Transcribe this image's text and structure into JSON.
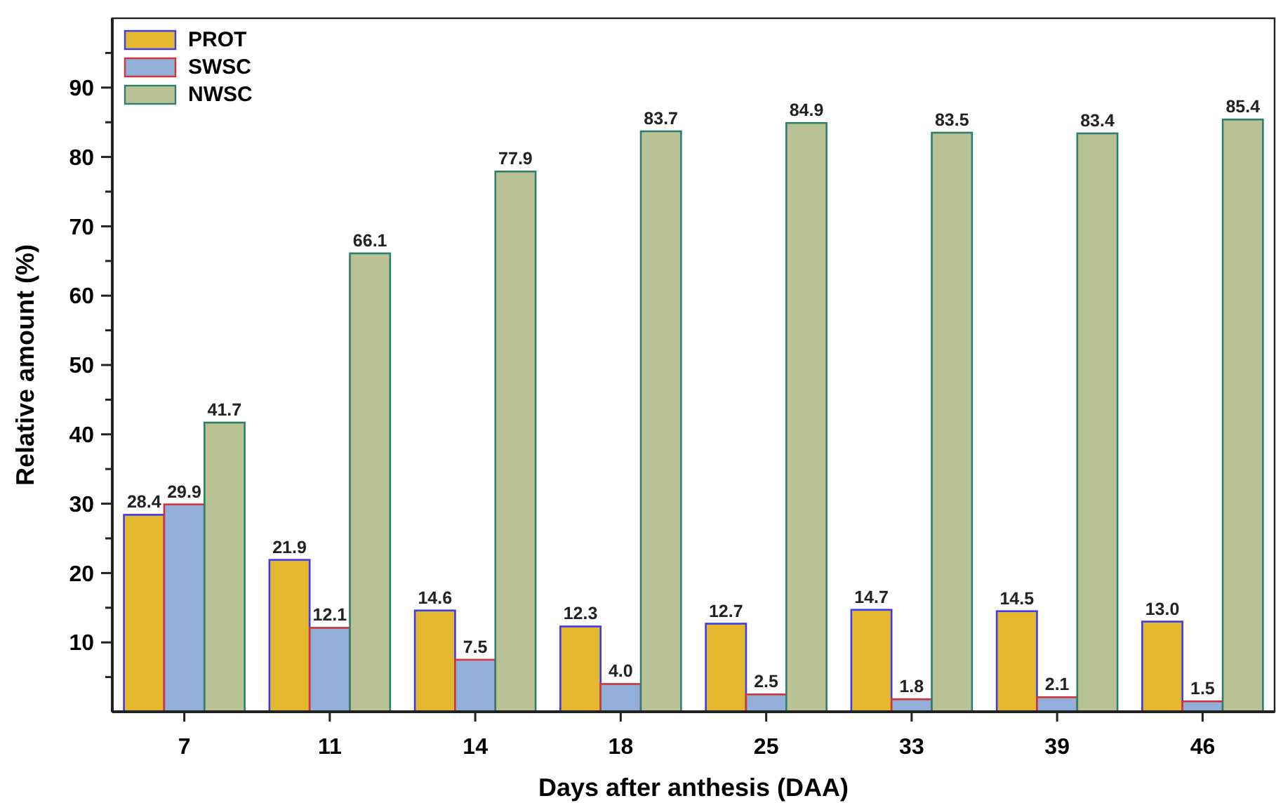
{
  "chart_data": {
    "type": "bar",
    "xlabel": "Days after anthesis (DAA)",
    "ylabel": "Relative amount (%)",
    "categories": [
      "7",
      "11",
      "14",
      "18",
      "25",
      "33",
      "39",
      "46"
    ],
    "series": [
      {
        "name": "PROT",
        "color": "#e4b82e",
        "values": [
          28.4,
          21.9,
          14.6,
          12.3,
          12.7,
          14.7,
          14.5,
          13.0
        ],
        "value_labels": [
          "28.4",
          "21.9",
          "14.6",
          "12.3",
          "12.7",
          "14.7",
          "14.5",
          "13.0"
        ]
      },
      {
        "name": "SWSC",
        "color": "#91afd8",
        "values": [
          29.9,
          12.1,
          7.5,
          4.0,
          2.5,
          1.8,
          2.1,
          1.5
        ],
        "value_labels": [
          "29.9",
          "12.1",
          "7.5",
          "4.0",
          "2.5",
          "1.8",
          "2.1",
          "1.5"
        ]
      },
      {
        "name": "NWSC",
        "color": "#b8c294",
        "values": [
          41.7,
          66.1,
          77.9,
          83.7,
          84.9,
          83.5,
          83.4,
          85.4
        ],
        "value_labels": [
          "41.7",
          "66.1",
          "77.9",
          "83.7",
          "84.9",
          "83.5",
          "83.4",
          "85.4"
        ]
      }
    ],
    "ylim": [
      0,
      100
    ],
    "yticks": [
      {
        "value": 5,
        "label": null
      },
      10,
      {
        "value": 15,
        "label": null
      },
      20,
      {
        "value": 25,
        "label": null
      },
      30,
      {
        "value": 35,
        "label": null
      },
      40,
      {
        "value": 45,
        "label": null
      },
      50,
      {
        "value": 55,
        "label": null
      },
      60,
      {
        "value": 65,
        "label": null
      },
      70,
      {
        "value": 75,
        "label": null
      },
      80,
      {
        "value": 85,
        "label": null
      },
      90,
      {
        "value": 95,
        "label": null
      }
    ],
    "legend": "top left",
    "grid": false
  }
}
